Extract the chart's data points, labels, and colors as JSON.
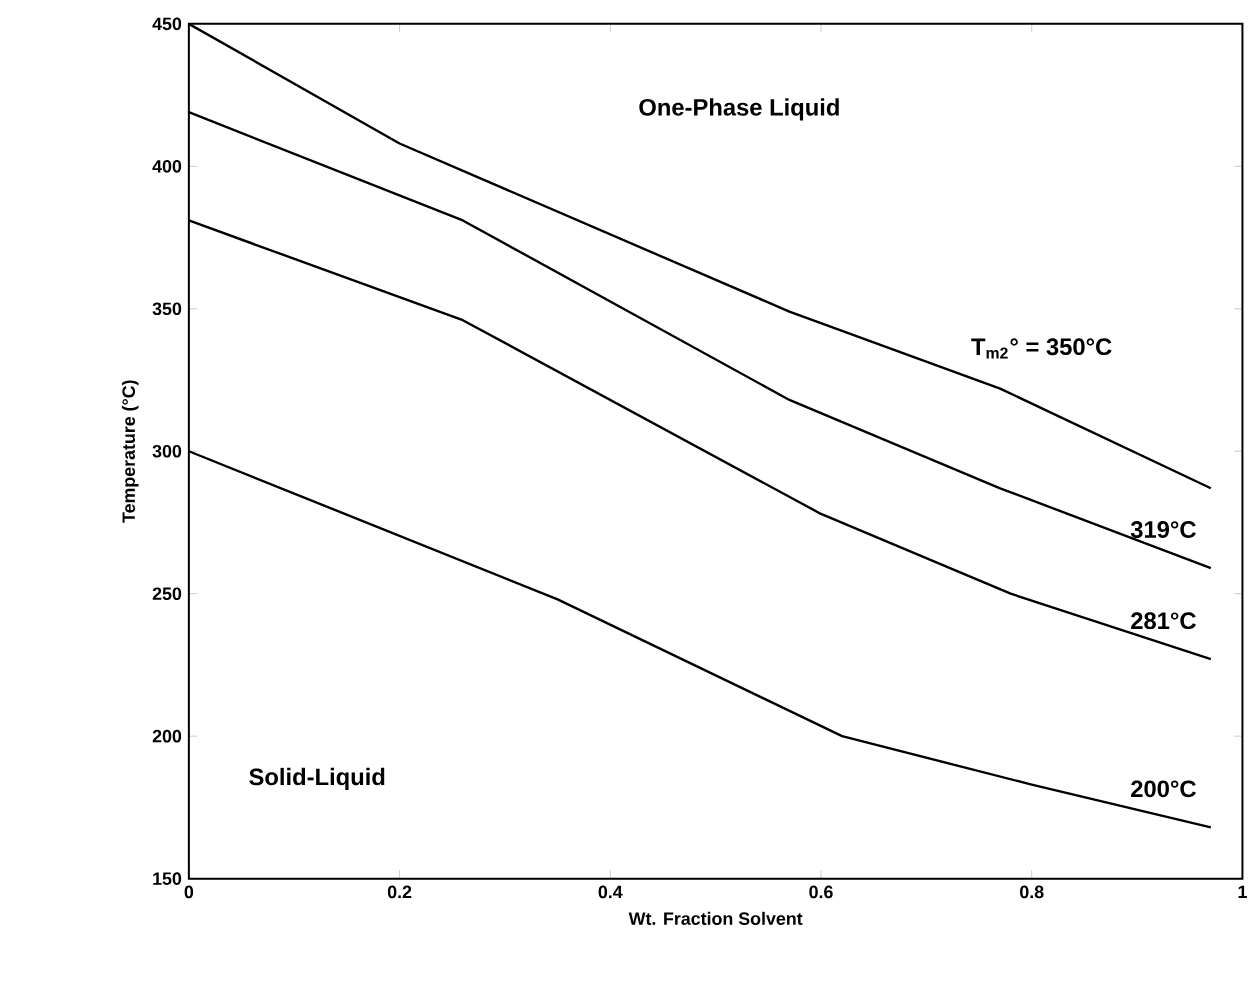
{
  "chart_data": {
    "type": "line",
    "xlabel": "Wt. Fraction Solvent",
    "ylabel": "Temperature (°C)",
    "xlim": [
      0,
      1
    ],
    "ylim": [
      150,
      450
    ],
    "xticks": [
      0,
      0.2,
      0.4,
      0.6,
      0.8,
      1
    ],
    "yticks": [
      150,
      200,
      250,
      300,
      350,
      400,
      450
    ],
    "grid": false,
    "marker": "none",
    "line_style": "solid",
    "annotations": [
      "One-Phase Liquid",
      "Solid-Liquid"
    ],
    "series": [
      {
        "name": "T$_{m2}$° = 350°C",
        "color": "#000000",
        "x": [
          0,
          0.2,
          0.57,
          0.77,
          0.97
        ],
        "values": [
          450,
          408,
          349,
          322,
          287
        ]
      },
      {
        "name": "319°C",
        "color": "#000000",
        "x": [
          0,
          0.26,
          0.57,
          0.77,
          0.97
        ],
        "values": [
          419,
          381,
          318,
          287,
          259
        ]
      },
      {
        "name": "281°C",
        "color": "#000000",
        "x": [
          0,
          0.26,
          0.6,
          0.78,
          0.97
        ],
        "values": [
          381,
          346,
          278,
          250,
          227
        ]
      },
      {
        "name": "200°C",
        "color": "#000000",
        "x": [
          0,
          0.35,
          0.62,
          0.8,
          0.97
        ],
        "values": [
          300,
          248,
          200,
          183,
          168
        ]
      }
    ]
  }
}
